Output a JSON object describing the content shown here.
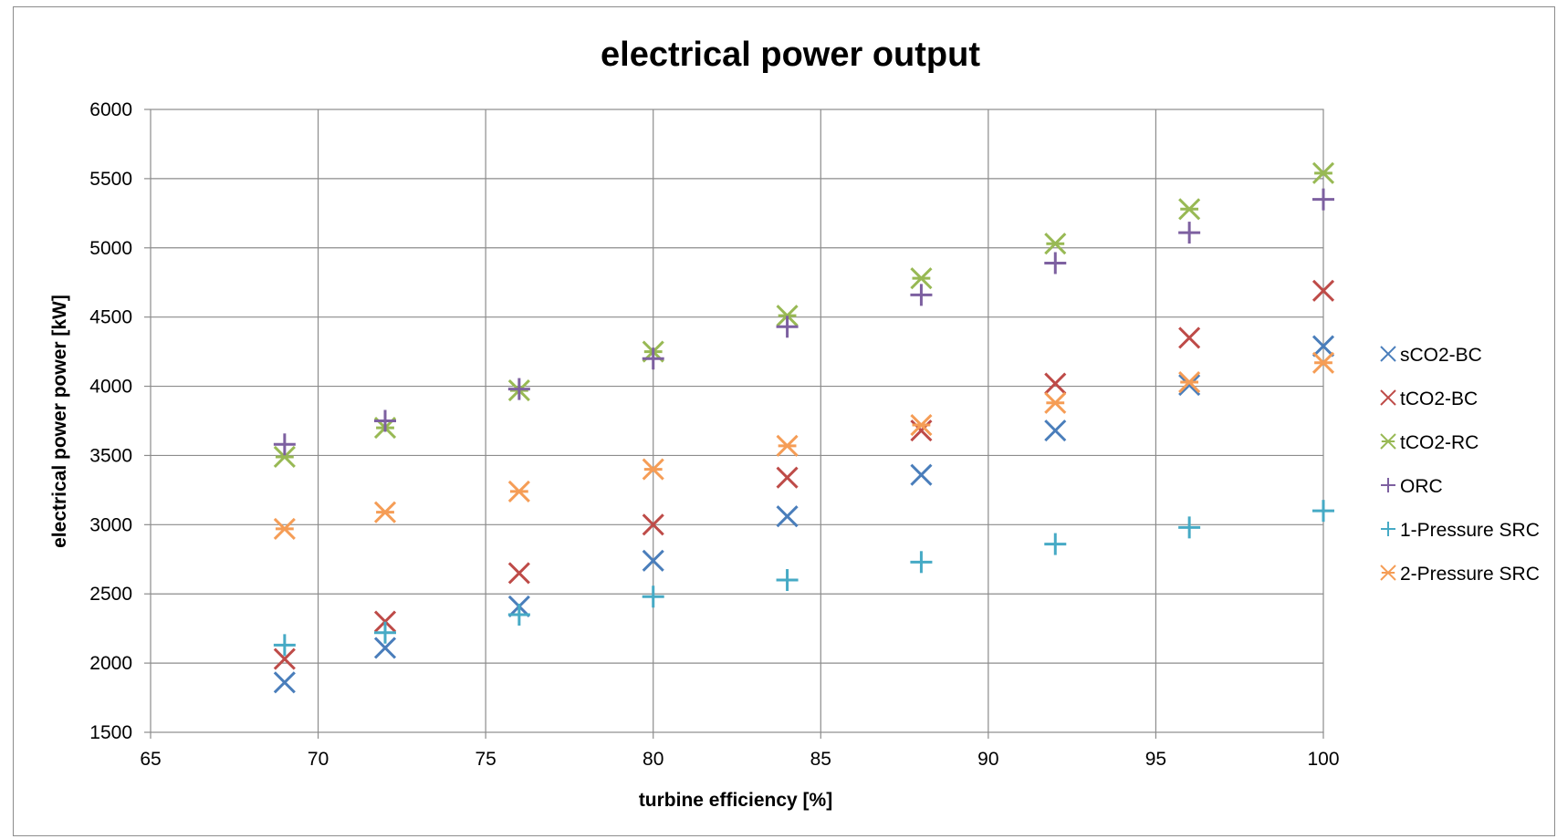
{
  "chart_data": {
    "type": "scatter",
    "title": "electrical power output",
    "xlabel": "turbine efficiency [%]",
    "ylabel": "electrical power power [kW]",
    "xlim": [
      65,
      100
    ],
    "ylim": [
      1500,
      6000
    ],
    "xticks": [
      65,
      70,
      75,
      80,
      85,
      90,
      95,
      100
    ],
    "yticks": [
      1500,
      2000,
      2500,
      3000,
      3500,
      4000,
      4500,
      5000,
      5500,
      6000
    ],
    "grid": true,
    "legend_position": "right",
    "x": [
      69,
      72,
      76,
      80,
      84,
      88,
      92,
      96,
      100
    ],
    "series": [
      {
        "name": "sCO2-BC",
        "marker": "x",
        "color": "#4a7ebb",
        "values": [
          1860,
          2110,
          2410,
          2740,
          3060,
          3360,
          3680,
          4010,
          4290
        ]
      },
      {
        "name": "tCO2-BC",
        "marker": "x",
        "color": "#be4b48",
        "values": [
          2030,
          2300,
          2650,
          3000,
          3340,
          3680,
          4020,
          4350,
          4690
        ]
      },
      {
        "name": "tCO2-RC",
        "marker": "star",
        "color": "#98b954",
        "values": [
          3490,
          3700,
          3970,
          4250,
          4510,
          4780,
          5030,
          5280,
          5540
        ]
      },
      {
        "name": "ORC",
        "marker": "plus",
        "color": "#7d60a0",
        "values": [
          3580,
          3750,
          3980,
          4200,
          4430,
          4660,
          4890,
          5110,
          5350
        ]
      },
      {
        "name": "1-Pressure SRC",
        "marker": "plus",
        "color": "#46aac5",
        "values": [
          2130,
          2220,
          2350,
          2480,
          2600,
          2730,
          2860,
          2980,
          3100
        ]
      },
      {
        "name": "2-Pressure SRC",
        "marker": "star",
        "color": "#f59d56",
        "values": [
          2970,
          3090,
          3240,
          3400,
          3570,
          3720,
          3880,
          4030,
          4170
        ]
      }
    ]
  }
}
